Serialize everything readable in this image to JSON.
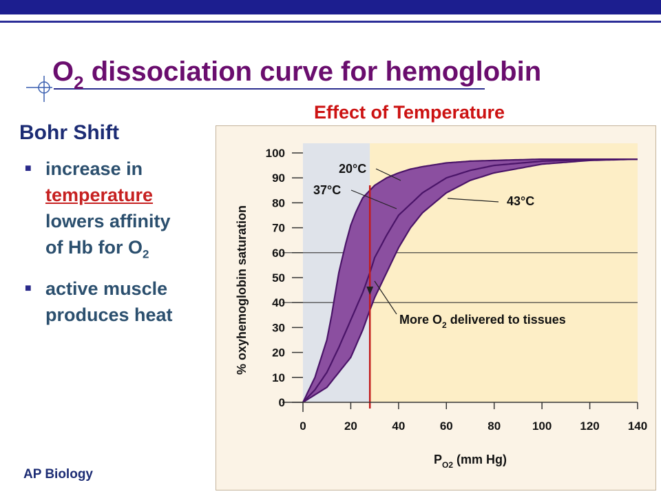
{
  "slide": {
    "title_main": "O",
    "title_sub": "2",
    "title_rest": " dissociation  curve for hemoglobin",
    "heading": "Bohr Shift",
    "bullets": [
      {
        "lines": [
          "increase in",
          "temperature",
          "lowers affinity",
          "of Hb for O",
          "2"
        ]
      },
      {
        "lines": [
          "active muscle",
          "produces heat"
        ]
      }
    ],
    "footer": "AP Biology",
    "colors": {
      "topbar": "#1c1e8f",
      "title": "#6a0d6e",
      "accent": "#cc1212",
      "bullet_text": "#2b4f6e"
    }
  },
  "chart_data": {
    "type": "line",
    "title": "Effect of Temperature",
    "xlabel": "P",
    "xlabel_sub": "O2",
    "xlabel_rest": " (mm Hg)",
    "ylabel": "% oxyhemoglobin saturation",
    "xlim": [
      0,
      140
    ],
    "ylim": [
      0,
      100
    ],
    "x_ticks": [
      0,
      20,
      40,
      60,
      80,
      100,
      120,
      140
    ],
    "y_ticks": [
      0,
      10,
      20,
      30,
      40,
      50,
      60,
      70,
      80,
      90,
      100
    ],
    "grid": false,
    "reference_lines_y": [
      40,
      60
    ],
    "marker_line_x": 28,
    "series": [
      {
        "name": "20°C",
        "x": [
          0,
          5,
          10,
          12,
          15,
          18,
          20,
          22,
          25,
          30,
          35,
          40,
          45,
          50,
          60,
          70,
          80,
          100,
          120,
          140
        ],
        "y": [
          0,
          10,
          25,
          35,
          52,
          64,
          71,
          76,
          82,
          87,
          90,
          92,
          93.5,
          94.5,
          96,
          96.7,
          97,
          97.5,
          97.5,
          97.5
        ]
      },
      {
        "name": "37°C",
        "x": [
          0,
          5,
          10,
          15,
          20,
          25,
          28,
          30,
          35,
          40,
          50,
          60,
          70,
          80,
          100,
          120,
          140
        ],
        "y": [
          0,
          5,
          12,
          22,
          33,
          44,
          52,
          58,
          67,
          75,
          84,
          90,
          93,
          95,
          96.7,
          97.3,
          97.5
        ]
      },
      {
        "name": "43°C",
        "x": [
          0,
          10,
          20,
          25,
          28,
          30,
          35,
          40,
          45,
          50,
          60,
          70,
          80,
          100,
          120,
          140
        ],
        "y": [
          0,
          6,
          18,
          29,
          37,
          42,
          52,
          62,
          70,
          76,
          84,
          89,
          92,
          95.5,
          97,
          97.5
        ]
      }
    ],
    "annotations": [
      {
        "text": "20°C",
        "series": "20°C"
      },
      {
        "text": "37°C",
        "series": "37°C"
      },
      {
        "text": "43°C",
        "series": "43°C"
      },
      {
        "text": "More O",
        "sub": "2",
        "rest": " delivered to tissues"
      }
    ],
    "colors": {
      "curve_fill": "#8b4fa0",
      "curve_line": "#4a1468",
      "left_region": "#dfe3ea",
      "right_region": "#fdeec6",
      "marker": "#c21c1c"
    }
  }
}
